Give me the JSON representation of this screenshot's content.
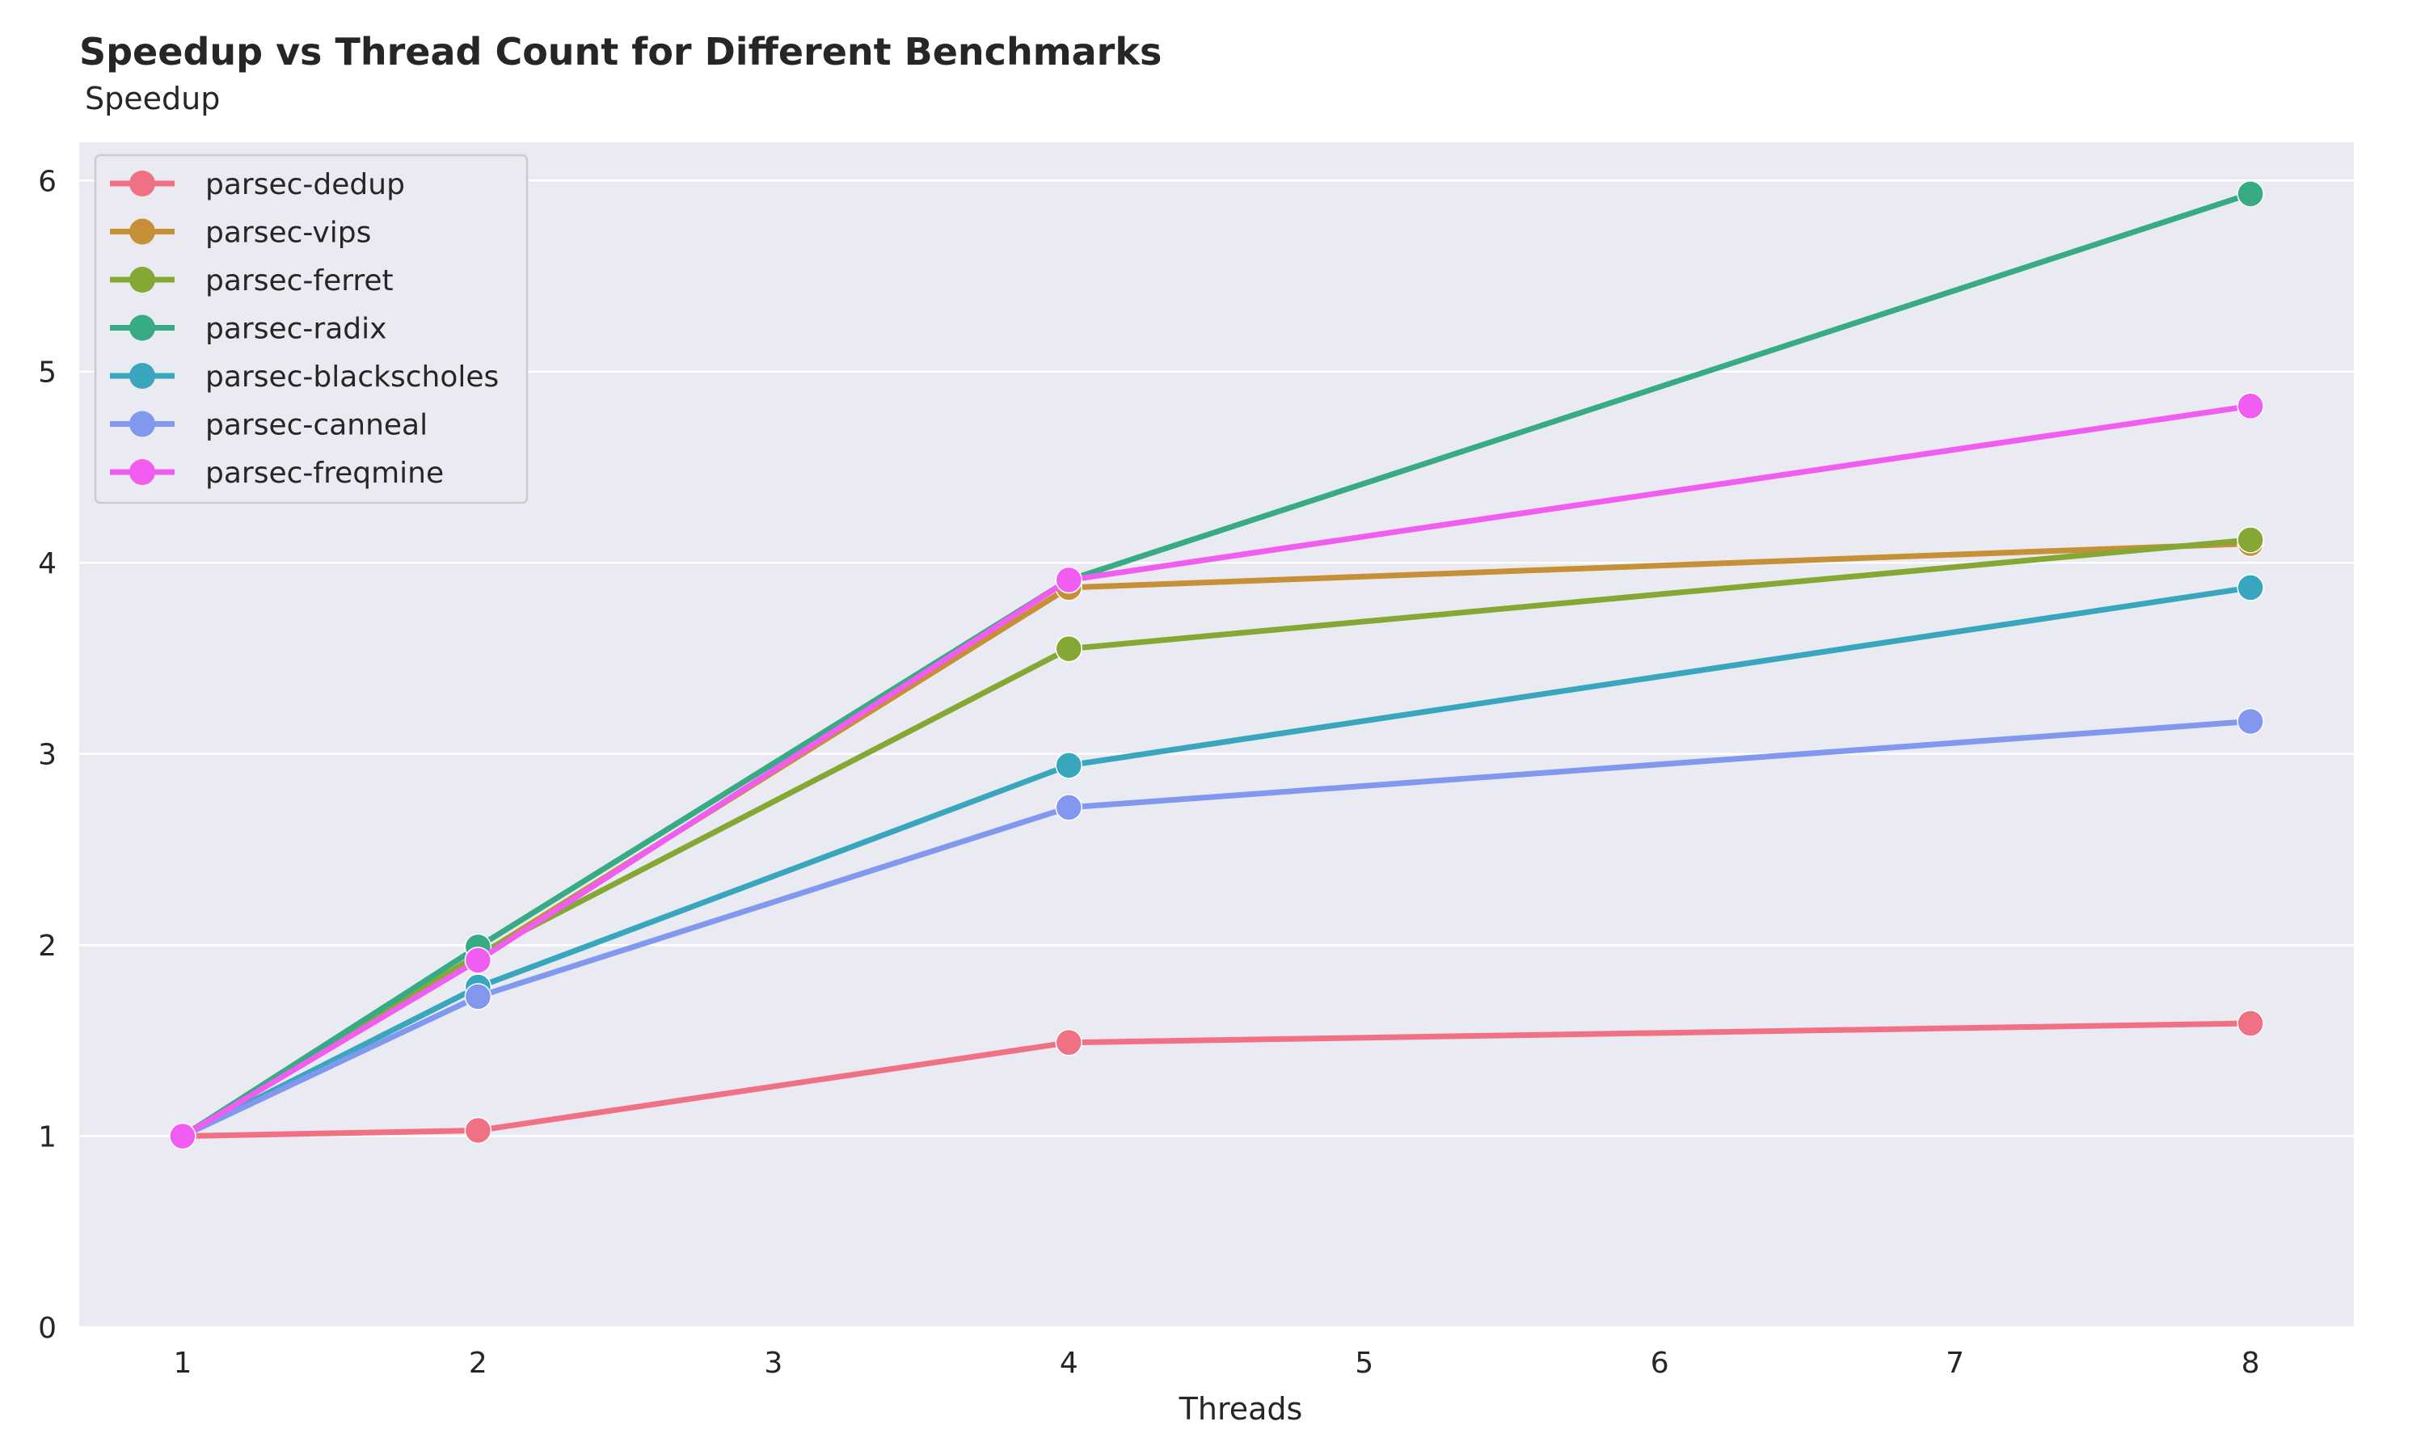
{
  "chart_data": {
    "type": "line",
    "title": "Speedup vs Thread Count for Different Benchmarks",
    "xlabel": "Threads",
    "ylabel": "Speedup",
    "x": [
      1,
      2,
      4,
      8
    ],
    "xlim": [
      0.65,
      8.35
    ],
    "ylim": [
      0,
      6.2
    ],
    "xticks": [
      1,
      2,
      3,
      4,
      5,
      6,
      7,
      8
    ],
    "yticks": [
      0,
      1,
      2,
      3,
      4,
      5,
      6
    ],
    "grid": true,
    "legend_position": "top-left",
    "background": "#eaeaf2",
    "series": [
      {
        "name": "parsec-dedup",
        "color": "#f07184",
        "values": [
          1.0,
          1.03,
          1.49,
          1.59
        ]
      },
      {
        "name": "parsec-vips",
        "color": "#c69037",
        "values": [
          1.0,
          1.94,
          3.87,
          4.1
        ]
      },
      {
        "name": "parsec-ferret",
        "color": "#85a834",
        "values": [
          1.0,
          1.95,
          3.55,
          4.12
        ]
      },
      {
        "name": "parsec-radix",
        "color": "#36ab84",
        "values": [
          1.0,
          1.99,
          3.91,
          5.93
        ]
      },
      {
        "name": "parsec-blackscholes",
        "color": "#38a7be",
        "values": [
          1.0,
          1.78,
          2.94,
          3.87
        ]
      },
      {
        "name": "parsec-canneal",
        "color": "#8198ee",
        "values": [
          1.0,
          1.73,
          2.72,
          3.17
        ]
      },
      {
        "name": "parsec-freqmine",
        "color": "#f05df0",
        "values": [
          1.0,
          1.92,
          3.91,
          4.82
        ]
      }
    ]
  }
}
